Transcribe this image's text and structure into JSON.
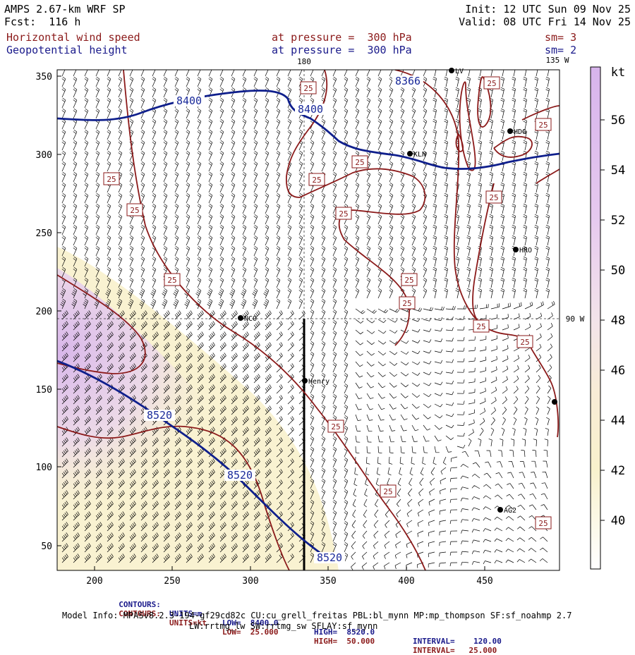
{
  "header": {
    "model": "AMPS 2.67-km WRF SP",
    "fcst": "Fcst:  116 h",
    "init": "Init: 12 UTC Sun 09 Nov 25",
    "valid": "Valid: 08 UTC Fri 14 Nov 25",
    "field1_name": "Horizontal wind speed",
    "field1_level": "at pressure =  300 hPa",
    "field1_sm": "sm= 3",
    "field2_name": "Geopotential height",
    "field2_level": "at pressure =  300 hPa",
    "field2_sm": "sm= 2"
  },
  "colors": {
    "height_contour": "#0f1f8c",
    "speed_contour": "#8b1a1a",
    "barbs": "#000000",
    "shade_purple": "#d7b4ec",
    "shade_yellow": "#f8f1cc"
  },
  "map": {
    "x_ticks": [
      "200",
      "250",
      "300",
      "350",
      "400",
      "450"
    ],
    "y_ticks": [
      "50",
      "100",
      "150",
      "200",
      "250",
      "300",
      "350"
    ],
    "lon_labels": {
      "top": "180",
      "top_right": "135 W",
      "right": "90 W"
    },
    "stations": [
      {
        "name": "NCO"
      },
      {
        "name": "KLN"
      },
      {
        "name": "HDG"
      },
      {
        "name": "HRO"
      },
      {
        "name": "Henry"
      },
      {
        "name": "AG2"
      },
      {
        "name": "LV"
      }
    ],
    "height_labels": [
      "8400",
      "8400",
      "8366",
      "8520",
      "8520",
      "8520"
    ],
    "speed_labels": [
      "25",
      "25",
      "25",
      "25",
      "25",
      "25",
      "25",
      "25",
      "25",
      "25",
      "25",
      "25",
      "25",
      "25",
      "25",
      "25",
      "25"
    ]
  },
  "colorbar": {
    "unit": "kt",
    "labels": [
      "56",
      "54",
      "52",
      "50",
      "48",
      "46",
      "44",
      "42",
      "40"
    ]
  },
  "footer": {
    "row1": {
      "name": "CONTOURS:",
      "units": "UNITS=m",
      "low": "LOW=  8400.0",
      "high": "HIGH=  8520.0",
      "interval": "INTERVAL=    120.00"
    },
    "row2": {
      "name": "CONTOURS:",
      "units": "UNITS=kt",
      "low": "LOW=  25.000",
      "high": "HIGH=  50.000",
      "interval": "INTERVAL=   25.000"
    },
    "model_info_1": "Model Info: MPASv8.2.3-194-gf29cd82c CU:cu_grell_freitas PBL:bl_mynn MP:mp_thompson SF:sf_noahmp 2.7",
    "model_info_2": "LW:rrtmg_lw SW:rrtmg_sw SFLAY:sf_mynn"
  }
}
